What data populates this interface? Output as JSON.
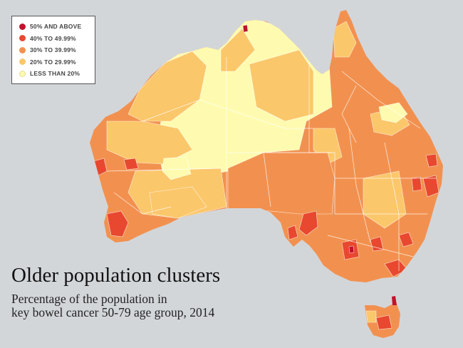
{
  "title": "Older population clusters",
  "subtitle_line1": "Percentage of the population in",
  "subtitle_line2": "key bowel cancer 50-79 age group, 2014",
  "legend": [
    {
      "label": "50% AND ABOVE",
      "color": "#c1132b"
    },
    {
      "label": "40% TO 49.99%",
      "color": "#e8482f"
    },
    {
      "label": "30% TO 39.99%",
      "color": "#f2914f"
    },
    {
      "label": "20% TO 29.99%",
      "color": "#fbc76b"
    },
    {
      "label": "LESS THAN 20%",
      "color": "#fefbb0"
    }
  ],
  "colors": {
    "background": "#d3d6d9",
    "land_under_20": "#fefbb0",
    "land_20_30": "#fbc76b",
    "land_30_40": "#f2914f",
    "land_40_50": "#e8482f",
    "land_50_plus": "#c1132b",
    "boundaries": "#ffffff"
  }
}
